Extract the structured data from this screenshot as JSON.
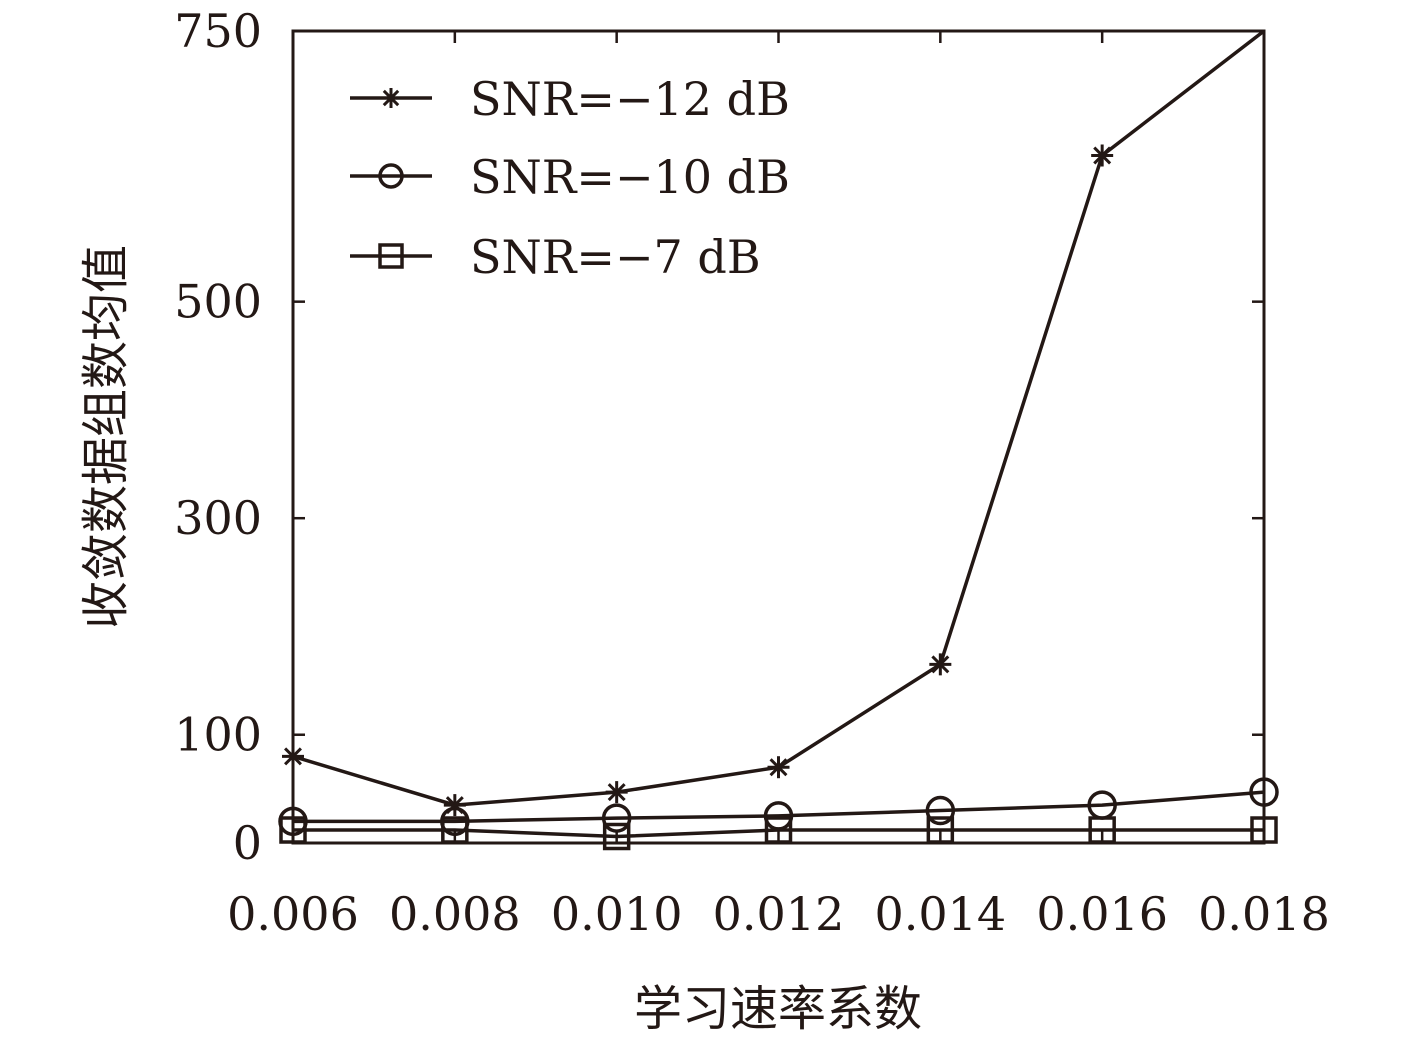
{
  "chart_data": {
    "type": "line",
    "title": "",
    "xlabel": "学习速率系数",
    "ylabel": "收敛数据组数均值",
    "x": [
      0.006,
      0.008,
      0.01,
      0.012,
      0.014,
      0.016,
      0.018
    ],
    "x_tick_labels": [
      "0.006",
      "0.008",
      "0.010",
      "0.012",
      "0.014",
      "0.016",
      "0.018"
    ],
    "xlim": [
      0.006,
      0.018
    ],
    "y_tick_values": [
      0,
      100,
      300,
      500,
      750
    ],
    "y_tick_labels": [
      "0",
      "100",
      "300",
      "500",
      "750"
    ],
    "ylim": [
      0,
      750
    ],
    "grid": false,
    "legend_position": "top-left",
    "series": [
      {
        "name": "SNR=−12 dB",
        "marker": "star",
        "values": [
          80,
          35,
          47,
          70,
          165,
          635,
          750
        ]
      },
      {
        "name": "SNR=−10 dB",
        "marker": "circle",
        "values": [
          20,
          20,
          23,
          25,
          30,
          35,
          47
        ]
      },
      {
        "name": "SNR=−7 dB",
        "marker": "square",
        "values": [
          12,
          12,
          6,
          12,
          12,
          12,
          12
        ]
      }
    ],
    "line_color": "#231815"
  }
}
